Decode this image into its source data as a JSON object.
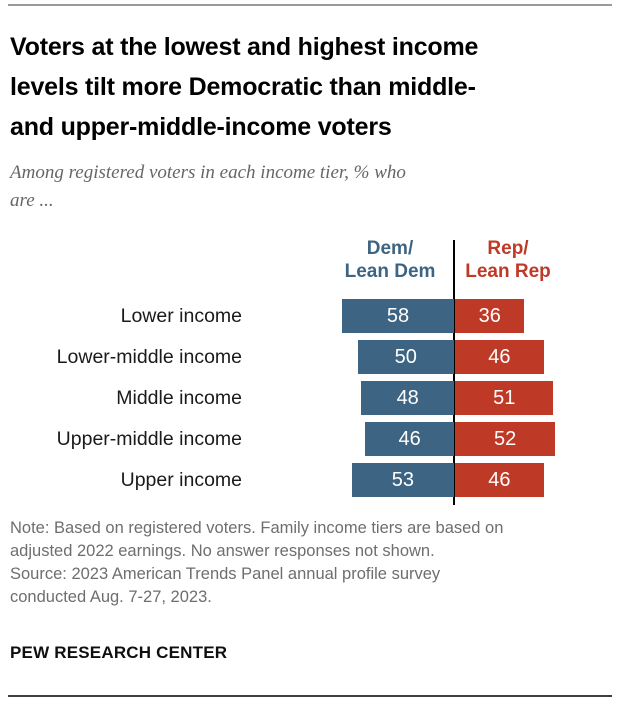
{
  "page": {
    "title_lines": [
      "Voters at the lowest and highest income",
      "levels tilt more Democratic than middle-",
      "and upper-middle-income voters"
    ],
    "subtitle_lines": [
      "Among registered voters in each income tier, % who",
      "are ..."
    ]
  },
  "chart": {
    "dem_header_lines": [
      "Dem/",
      "Lean Dem"
    ],
    "rep_header_lines": [
      "Rep/",
      "Lean Rep"
    ]
  },
  "chart_data": {
    "type": "bar",
    "variant": "horizontal-diverging",
    "title": "Voters at the lowest and highest income levels tilt more Democratic than middle- and upper-middle-income voters",
    "subtitle": "Among registered voters in each income tier, % who are ...",
    "categories": [
      "Lower income",
      "Lower-middle income",
      "Middle income",
      "Upper-middle income",
      "Upper income"
    ],
    "series": [
      {
        "name": "Dem/Lean Dem",
        "values": [
          58,
          50,
          48,
          46,
          53
        ]
      },
      {
        "name": "Rep/Lean Rep",
        "values": [
          36,
          46,
          51,
          52,
          46
        ]
      }
    ],
    "unit": "%",
    "value_range": [
      0,
      60
    ],
    "legend_position": "column-headers-top",
    "grid": false
  },
  "colors": {
    "dem": "#3d6482",
    "rep": "#bf3927",
    "axis": "#000000",
    "note_text": "#6e6e6e",
    "rule_top": "#9a9a9a",
    "rule_bottom": "#404040"
  },
  "notes": {
    "lines": [
      "Note: Based on registered voters. Family income tiers are based on",
      "adjusted 2022 earnings. No answer responses not shown.",
      "Source: 2023 American Trends Panel annual profile survey",
      "conducted Aug. 7-27, 2023."
    ]
  },
  "footer": {
    "brand": "PEW RESEARCH CENTER"
  }
}
